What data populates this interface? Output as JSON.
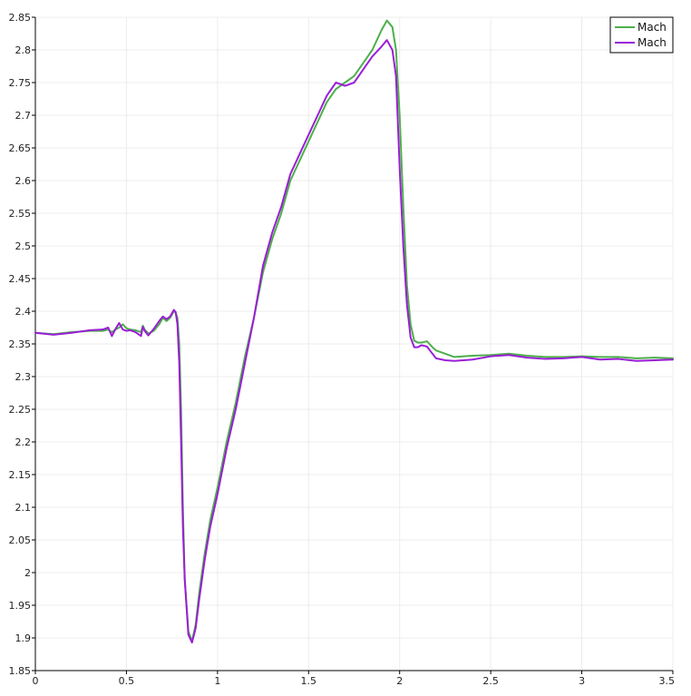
{
  "chart_data": {
    "type": "line",
    "title": "",
    "xlabel": "",
    "ylabel": "",
    "xlim": [
      0,
      3.5
    ],
    "ylim": [
      1.85,
      2.85
    ],
    "xticks": [
      0,
      0.5,
      1,
      1.5,
      2,
      2.5,
      3,
      3.5
    ],
    "yticks": [
      1.85,
      1.9,
      1.95,
      2,
      2.05,
      2.1,
      2.15,
      2.2,
      2.25,
      2.3,
      2.35,
      2.4,
      2.45,
      2.5,
      2.55,
      2.6,
      2.65,
      2.7,
      2.75,
      2.8,
      2.85
    ],
    "xtick_labels": [
      "0",
      "0.5",
      "1",
      "1.5",
      "2",
      "2.5",
      "3",
      "3.5"
    ],
    "ytick_labels": [
      "1.85",
      "1.9",
      "1.95",
      "2",
      "2.05",
      "2.1",
      "2.15",
      "2.2",
      "2.25",
      "2.3",
      "2.35",
      "2.4",
      "2.45",
      "2.5",
      "2.55",
      "2.6",
      "2.65",
      "2.7",
      "2.75",
      "2.8",
      "2.85"
    ],
    "grid": true,
    "legend_position": "top-right",
    "series": [
      {
        "name": "Mach",
        "color": "#4daf4a",
        "x": [
          0,
          0.1,
          0.2,
          0.3,
          0.37,
          0.4,
          0.42,
          0.44,
          0.46,
          0.48,
          0.5,
          0.52,
          0.55,
          0.58,
          0.59,
          0.6,
          0.62,
          0.65,
          0.68,
          0.7,
          0.72,
          0.74,
          0.76,
          0.77,
          0.78,
          0.79,
          0.8,
          0.81,
          0.82,
          0.84,
          0.86,
          0.88,
          0.9,
          0.93,
          0.96,
          1,
          1.05,
          1.1,
          1.15,
          1.2,
          1.25,
          1.3,
          1.35,
          1.4,
          1.45,
          1.5,
          1.55,
          1.6,
          1.65,
          1.7,
          1.75,
          1.8,
          1.85,
          1.9,
          1.93,
          1.96,
          1.98,
          2,
          2.02,
          2.04,
          2.06,
          2.08,
          2.1,
          2.12,
          2.15,
          2.18,
          2.2,
          2.25,
          2.3,
          2.4,
          2.5,
          2.6,
          2.7,
          2.8,
          2.9,
          3,
          3.1,
          3.2,
          3.3,
          3.4,
          3.5
        ],
        "y": [
          2.367,
          2.365,
          2.368,
          2.37,
          2.37,
          2.372,
          2.368,
          2.372,
          2.375,
          2.38,
          2.374,
          2.372,
          2.371,
          2.368,
          2.378,
          2.372,
          2.366,
          2.37,
          2.38,
          2.39,
          2.385,
          2.39,
          2.4,
          2.398,
          2.39,
          2.35,
          2.25,
          2.1,
          1.99,
          1.91,
          1.895,
          1.92,
          1.97,
          2.03,
          2.08,
          2.13,
          2.2,
          2.26,
          2.33,
          2.39,
          2.46,
          2.51,
          2.55,
          2.6,
          2.63,
          2.66,
          2.69,
          2.72,
          2.74,
          2.75,
          2.76,
          2.78,
          2.8,
          2.83,
          2.845,
          2.835,
          2.8,
          2.7,
          2.56,
          2.44,
          2.38,
          2.355,
          2.352,
          2.352,
          2.354,
          2.345,
          2.34,
          2.335,
          2.33,
          2.332,
          2.333,
          2.335,
          2.332,
          2.33,
          2.33,
          2.331,
          2.33,
          2.33,
          2.328,
          2.329,
          2.328
        ]
      },
      {
        "name": "Mach",
        "color": "#9a1ed6",
        "x": [
          0,
          0.1,
          0.2,
          0.3,
          0.37,
          0.4,
          0.42,
          0.44,
          0.46,
          0.48,
          0.5,
          0.52,
          0.55,
          0.58,
          0.59,
          0.6,
          0.62,
          0.65,
          0.68,
          0.7,
          0.72,
          0.74,
          0.76,
          0.77,
          0.78,
          0.79,
          0.8,
          0.81,
          0.82,
          0.84,
          0.86,
          0.88,
          0.9,
          0.93,
          0.96,
          1,
          1.05,
          1.1,
          1.15,
          1.2,
          1.25,
          1.3,
          1.35,
          1.4,
          1.45,
          1.5,
          1.55,
          1.6,
          1.65,
          1.7,
          1.75,
          1.8,
          1.85,
          1.9,
          1.93,
          1.96,
          1.98,
          2,
          2.02,
          2.04,
          2.06,
          2.08,
          2.1,
          2.12,
          2.15,
          2.18,
          2.2,
          2.25,
          2.3,
          2.4,
          2.5,
          2.6,
          2.7,
          2.8,
          2.9,
          3,
          3.1,
          3.2,
          3.3,
          3.4,
          3.5
        ],
        "y": [
          2.367,
          2.364,
          2.367,
          2.371,
          2.372,
          2.375,
          2.362,
          2.373,
          2.382,
          2.372,
          2.37,
          2.371,
          2.368,
          2.362,
          2.376,
          2.37,
          2.363,
          2.373,
          2.385,
          2.392,
          2.388,
          2.392,
          2.402,
          2.399,
          2.38,
          2.32,
          2.2,
          2.07,
          1.99,
          1.905,
          1.893,
          1.915,
          1.96,
          2.02,
          2.07,
          2.12,
          2.19,
          2.25,
          2.32,
          2.39,
          2.47,
          2.52,
          2.56,
          2.61,
          2.64,
          2.67,
          2.7,
          2.73,
          2.75,
          2.745,
          2.75,
          2.77,
          2.79,
          2.805,
          2.815,
          2.8,
          2.76,
          2.62,
          2.5,
          2.41,
          2.36,
          2.345,
          2.345,
          2.348,
          2.346,
          2.335,
          2.328,
          2.325,
          2.324,
          2.326,
          2.331,
          2.333,
          2.329,
          2.327,
          2.328,
          2.33,
          2.326,
          2.327,
          2.324,
          2.325,
          2.326
        ]
      }
    ]
  }
}
